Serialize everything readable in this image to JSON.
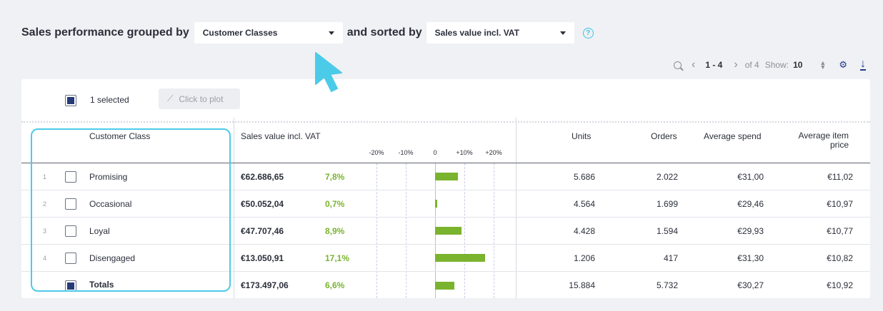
{
  "header": {
    "prefix": "Sales performance grouped by",
    "group_select": "Customer Classes",
    "middle": "and sorted by",
    "sort_select": "Sales value incl. VAT",
    "help_glyph": "?"
  },
  "pager": {
    "range": "1 - 4",
    "of": "of 4",
    "show_label": "Show:",
    "show_value": "10"
  },
  "toolbar": {
    "selected_text": "1 selected",
    "plot_label": "Click to plot"
  },
  "columns": {
    "customer_class": "Customer Class",
    "sales_value": "Sales value incl. VAT",
    "units": "Units",
    "orders": "Orders",
    "avg_spend": "Average spend",
    "avg_item_price_1": "Average item",
    "avg_item_price_2": "price"
  },
  "ticks": [
    "-20%",
    "-10%",
    "0",
    "+10%",
    "+20%"
  ],
  "rows": [
    {
      "index": "1",
      "name": "Promising",
      "sales": "€62.686,65",
      "change": "7,8%",
      "change_value": 7.8,
      "units": "5.686",
      "orders": "2.022",
      "avg_spend": "€31,00",
      "avg_item": "€11,02"
    },
    {
      "index": "2",
      "name": "Occasional",
      "sales": "€50.052,04",
      "change": "0,7%",
      "change_value": 0.7,
      "units": "4.564",
      "orders": "1.699",
      "avg_spend": "€29,46",
      "avg_item": "€10,97"
    },
    {
      "index": "3",
      "name": "Loyal",
      "sales": "€47.707,46",
      "change": "8,9%",
      "change_value": 8.9,
      "units": "4.428",
      "orders": "1.594",
      "avg_spend": "€29,93",
      "avg_item": "€10,77"
    },
    {
      "index": "4",
      "name": "Disengaged",
      "sales": "€13.050,91",
      "change": "17,1%",
      "change_value": 17.1,
      "units": "1.206",
      "orders": "417",
      "avg_spend": "€31,30",
      "avg_item": "€10,82"
    }
  ],
  "totals": {
    "name": "Totals",
    "sales": "€173.497,06",
    "change": "6,6%",
    "change_value": 6.6,
    "units": "15.884",
    "orders": "5.732",
    "avg_spend": "€30,27",
    "avg_item": "€10,92"
  },
  "colors": {
    "accent": "#4ccbe9",
    "bar": "#7ab32e",
    "checkbox": "#263a7a"
  }
}
